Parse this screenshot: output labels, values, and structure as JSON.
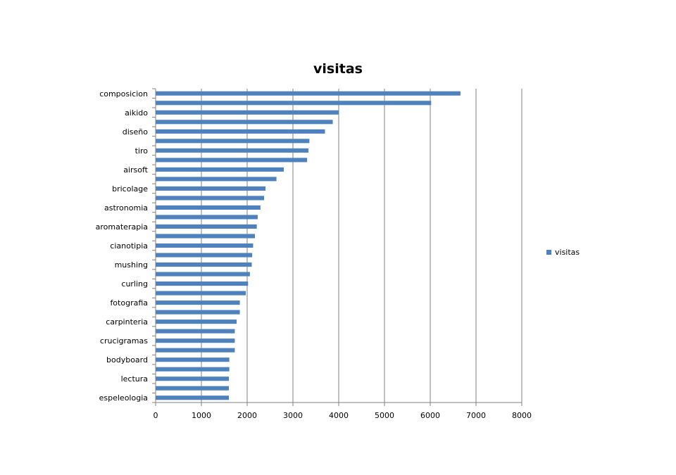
{
  "chart_data": {
    "type": "bar",
    "orientation": "horizontal",
    "title": "visitas",
    "categories": [
      "composicion",
      "",
      "aikido",
      "",
      "diseño",
      "",
      "tiro",
      "",
      "airsoft",
      "",
      "bricolage",
      "",
      "astronomia",
      "",
      "aromaterapia",
      "",
      "cianotipia",
      "",
      "mushing",
      "",
      "curling",
      "",
      "fotografia",
      "",
      "carpinteria",
      "",
      "crucigramas",
      "",
      "bodyboard",
      "",
      "lectura",
      "",
      "espeleologia"
    ],
    "series": [
      {
        "name": "visitas",
        "color": "#4F81BD",
        "values": [
          6660,
          6020,
          4000,
          3870,
          3700,
          3360,
          3340,
          3310,
          2800,
          2640,
          2400,
          2370,
          2290,
          2230,
          2210,
          2170,
          2130,
          2110,
          2100,
          2060,
          2020,
          1970,
          1840,
          1840,
          1770,
          1730,
          1730,
          1730,
          1610,
          1610,
          1600,
          1600,
          1600
        ]
      }
    ],
    "xlim": [
      0,
      8000
    ],
    "xticks": [
      "0",
      "1000",
      "2000",
      "3000",
      "4000",
      "5000",
      "6000",
      "7000",
      "8000"
    ],
    "grid": true,
    "legend_position": "right"
  }
}
